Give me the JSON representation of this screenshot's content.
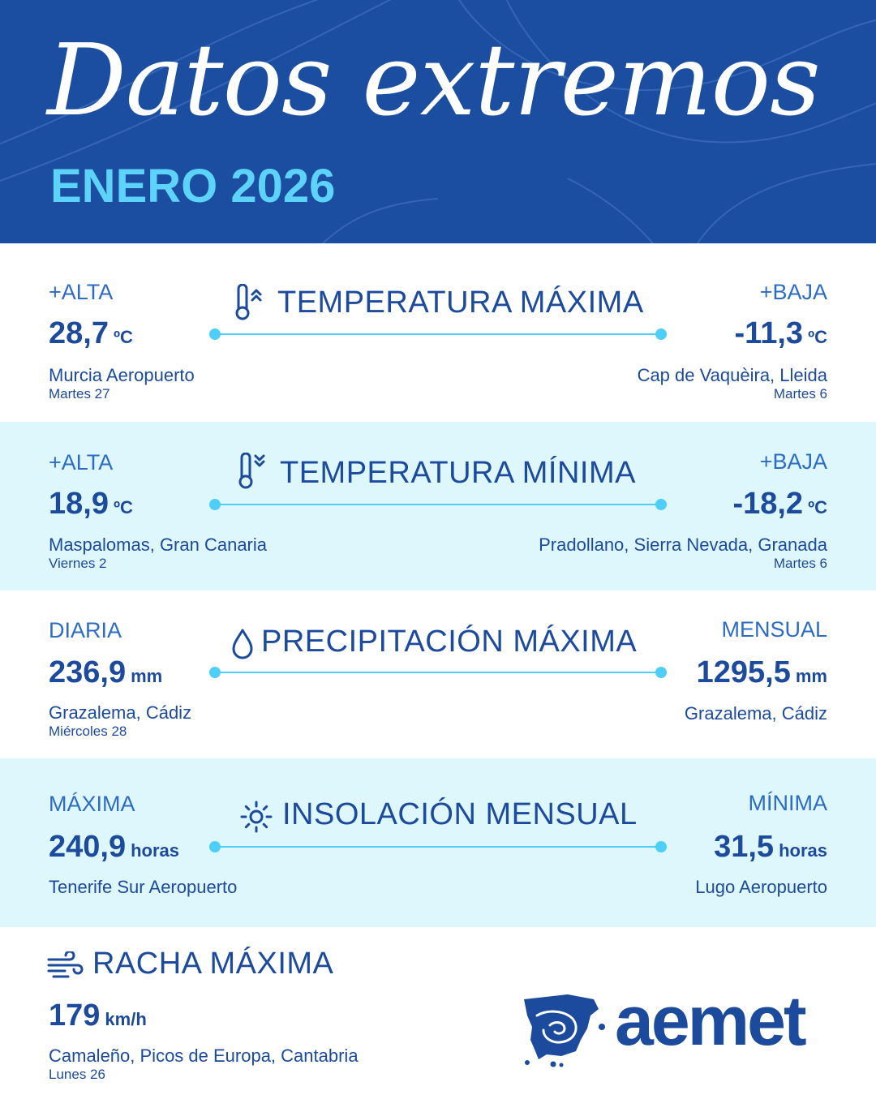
{
  "header": {
    "title": "Datos extremos",
    "subtitle": "ENERO 2026"
  },
  "colors": {
    "header_bg": "#1b4da1",
    "accent_cyan": "#5ed3f9",
    "text_navy": "#1c4a9c",
    "label_blue": "#2c6cc5",
    "band_light": "#def7fd"
  },
  "sections": {
    "tmax": {
      "title": "TEMPERATURA MÁXIMA",
      "icon": "thermometer-up-icon",
      "left": {
        "label": "+ALTA",
        "value": "28,7",
        "unit": "ºC",
        "place": "Murcia Aeropuerto",
        "date": "Martes 27"
      },
      "right": {
        "label": "+BAJA",
        "value": "-11,3",
        "unit": "ºC",
        "place": "Cap de Vaquèira, Lleida",
        "date": "Martes 6"
      }
    },
    "tmin": {
      "title": "TEMPERATURA MÍNIMA",
      "icon": "thermometer-down-icon",
      "left": {
        "label": "+ALTA",
        "value": "18,9",
        "unit": "ºC",
        "place": "Maspalomas, Gran Canaria",
        "date": "Viernes 2"
      },
      "right": {
        "label": "+BAJA",
        "value": "-18,2",
        "unit": "ºC",
        "place": "Pradollano, Sierra Nevada, Granada",
        "date": "Martes 6"
      }
    },
    "precip": {
      "title": "PRECIPITACIÓN MÁXIMA",
      "icon": "water-drop-icon",
      "left": {
        "label": "DIARIA",
        "value": "236,9",
        "unit": "mm",
        "place": "Grazalema, Cádiz",
        "date": "Miércoles 28"
      },
      "right": {
        "label": "MENSUAL",
        "value": "1295,5",
        "unit": "mm",
        "place": "Grazalema, Cádiz"
      }
    },
    "sun": {
      "title": "INSOLACIÓN MENSUAL",
      "icon": "sun-icon",
      "left": {
        "label": "MÁXIMA",
        "value": "240,9",
        "unit": "horas",
        "place": "Tenerife Sur Aeropuerto"
      },
      "right": {
        "label": "MÍNIMA",
        "value": "31,5",
        "unit": "horas",
        "place": "Lugo Aeropuerto"
      }
    },
    "wind": {
      "title": "RACHA MÁXIMA",
      "icon": "wind-icon",
      "value": "179",
      "unit": "km/h",
      "place": "Camaleño, Picos de Europa, Cantabria",
      "date": "Lunes 26"
    }
  },
  "logo": {
    "text": "aemet",
    "icon": "aemet-spain-map-logo"
  }
}
